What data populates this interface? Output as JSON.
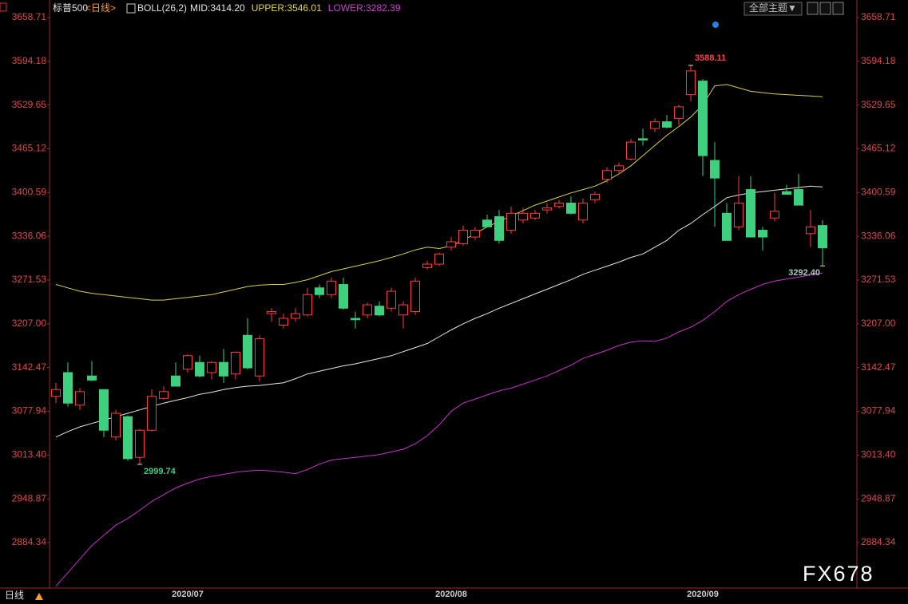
{
  "header": {
    "symbol": "标普500",
    "period": "<日线>",
    "indicator": "BOLL(26,2)",
    "legend": [
      {
        "text": "MID:3414.20",
        "color": "#e8e8e8"
      },
      {
        "text": "UPPER:3546.01",
        "color": "#e6d44a"
      },
      {
        "text": "LOWER:3282.39",
        "color": "#d040d0"
      }
    ],
    "theme_button": "全部主题▼"
  },
  "footer_tab": "日线",
  "watermark": "FX678",
  "chart_data": {
    "type": "candlestick",
    "categories": [
      null,
      null,
      null,
      null,
      null,
      null,
      null,
      null,
      null,
      null,
      null,
      "2020/07",
      null,
      null,
      null,
      null,
      null,
      null,
      null,
      null,
      null,
      null,
      null,
      null,
      null,
      null,
      null,
      null,
      null,
      null,
      null,
      null,
      null,
      "2020/08",
      null,
      null,
      null,
      null,
      null,
      null,
      null,
      null,
      null,
      null,
      null,
      null,
      null,
      null,
      null,
      null,
      null,
      null,
      null,
      null,
      "2020/09",
      null,
      null,
      null,
      null,
      null,
      null,
      null,
      null,
      null,
      null
    ],
    "open": [
      3100,
      3135,
      3087,
      3130,
      3110,
      3040,
      3070,
      3010,
      3050,
      3097,
      3130,
      3140,
      3150,
      3135,
      3150,
      3133,
      3190,
      3130,
      3222,
      3205,
      3215,
      3220,
      3260,
      3250,
      3265,
      3215,
      3220,
      3233,
      3230,
      3220,
      3225,
      3290,
      3295,
      3320,
      3325,
      3335,
      3360,
      3365,
      3345,
      3360,
      3363,
      3375,
      3380,
      3385,
      3360,
      3390,
      3420,
      3433,
      3450,
      3480,
      3495,
      3505,
      3510,
      3545,
      3565,
      3448,
      3370,
      3350,
      3405,
      3345,
      3363,
      3402,
      3405,
      3340,
      3352
    ],
    "high": [
      3120,
      3150,
      3112,
      3152,
      3110,
      3080,
      3072,
      3052,
      3110,
      3115,
      3150,
      3162,
      3160,
      3152,
      3170,
      3166,
      3215,
      3190,
      3230,
      3222,
      3230,
      3260,
      3265,
      3275,
      3275,
      3225,
      3238,
      3240,
      3260,
      3240,
      3275,
      3300,
      3312,
      3335,
      3352,
      3350,
      3368,
      3375,
      3380,
      3378,
      3375,
      3385,
      3390,
      3395,
      3392,
      3402,
      3438,
      3445,
      3480,
      3495,
      3510,
      3515,
      3530,
      3588.11,
      3568,
      3475,
      3385,
      3425,
      3425,
      3350,
      3400,
      3412,
      3428,
      3375,
      3360
    ],
    "low": [
      3090,
      3085,
      3080,
      3122,
      3040,
      3035,
      3005,
      2999.74,
      3048,
      3095,
      3115,
      3135,
      3128,
      3125,
      3120,
      3125,
      3140,
      3122,
      3210,
      3200,
      3210,
      3218,
      3245,
      3245,
      3228,
      3200,
      3215,
      3218,
      3225,
      3200,
      3220,
      3287,
      3292,
      3315,
      3322,
      3330,
      3350,
      3325,
      3340,
      3355,
      3360,
      3370,
      3377,
      3368,
      3355,
      3385,
      3415,
      3428,
      3448,
      3470,
      3490,
      3495,
      3500,
      3535,
      3425,
      3350,
      3330,
      3345,
      3335,
      3315,
      3358,
      3398,
      3382,
      3320,
      3292.4
    ],
    "close": [
      3110,
      3090,
      3107,
      3124,
      3050,
      3075,
      3008,
      3050,
      3100,
      3107,
      3115,
      3160,
      3130,
      3150,
      3130,
      3165,
      3142,
      3185,
      3225,
      3215,
      3222,
      3250,
      3250,
      3270,
      3230,
      3213,
      3235,
      3220,
      3255,
      3235,
      3270,
      3295,
      3310,
      3328,
      3345,
      3345,
      3350,
      3330,
      3370,
      3370,
      3370,
      3378,
      3385,
      3370,
      3385,
      3398,
      3433,
      3440,
      3475,
      3478,
      3505,
      3497,
      3527,
      3580,
      3455,
      3422,
      3330,
      3385,
      3335,
      3335,
      3373,
      3398,
      3382,
      3350,
      3319
    ],
    "up_color": "#ff3b3b",
    "down_color": "#3ecf7f",
    "series": [
      {
        "color": "#e8e8d8",
        "values": [
          3040,
          3048,
          3055,
          3060,
          3065,
          3070,
          3075,
          3080,
          3085,
          3090,
          3094,
          3098,
          3103,
          3106,
          3110,
          3113,
          3115,
          3116,
          3118,
          3120,
          3126,
          3133,
          3137,
          3141,
          3145,
          3148,
          3152,
          3156,
          3160,
          3166,
          3172,
          3178,
          3188,
          3198,
          3207,
          3215,
          3222,
          3230,
          3237,
          3244,
          3251,
          3258,
          3265,
          3272,
          3280,
          3286,
          3292,
          3298,
          3305,
          3310,
          3320,
          3330,
          3345,
          3355,
          3368,
          3380,
          3393,
          3397,
          3400,
          3402,
          3404,
          3406,
          3408,
          3410,
          3409
        ]
      },
      {
        "color": "#d8d048",
        "values": [
          3265,
          3260,
          3255,
          3252,
          3250,
          3248,
          3246,
          3244,
          3242,
          3242,
          3244,
          3246,
          3248,
          3250,
          3254,
          3258,
          3262,
          3264,
          3265,
          3265,
          3268,
          3272,
          3278,
          3284,
          3288,
          3292,
          3296,
          3300,
          3305,
          3310,
          3316,
          3320,
          3318,
          3322,
          3330,
          3340,
          3350,
          3358,
          3366,
          3374,
          3382,
          3388,
          3394,
          3400,
          3405,
          3410,
          3418,
          3428,
          3440,
          3455,
          3470,
          3485,
          3498,
          3512,
          3530,
          3558,
          3560,
          3555,
          3550,
          3548,
          3546,
          3545,
          3544,
          3543,
          3542
        ]
      },
      {
        "color": "#c832c8",
        "values": [
          2820,
          2840,
          2860,
          2880,
          2895,
          2910,
          2920,
          2932,
          2945,
          2955,
          2965,
          2972,
          2978,
          2982,
          2985,
          2988,
          2990,
          2991,
          2990,
          2988,
          2986,
          2992,
          3000,
          3006,
          3008,
          3010,
          3012,
          3014,
          3018,
          3022,
          3030,
          3042,
          3058,
          3078,
          3090,
          3096,
          3102,
          3108,
          3112,
          3118,
          3124,
          3130,
          3138,
          3146,
          3156,
          3162,
          3168,
          3175,
          3180,
          3182,
          3181,
          3186,
          3195,
          3202,
          3212,
          3225,
          3240,
          3250,
          3258,
          3265,
          3270,
          3273,
          3276,
          3279,
          3282
        ]
      }
    ],
    "annotations": [
      {
        "label": "3588.11",
        "value": 3588.11,
        "color": "#ff4040"
      },
      {
        "label": "2999.74",
        "value": 2999.74,
        "color": "#3ecf7f"
      },
      {
        "label": "3292.40",
        "value": 3292.4,
        "color": "#a8c8c0"
      }
    ],
    "ylim": [
      2819.6,
      3684.6
    ],
    "yticks": [
      3658.71,
      3594.18,
      3529.65,
      3465.12,
      3400.59,
      3336.06,
      3271.53,
      {
        "value": 3207,
        "label": "3207.00"
      },
      3142.47,
      3077.94,
      {
        "value": 3013.4,
        "label": "3013.40"
      },
      2948.87,
      2884.34
    ]
  }
}
